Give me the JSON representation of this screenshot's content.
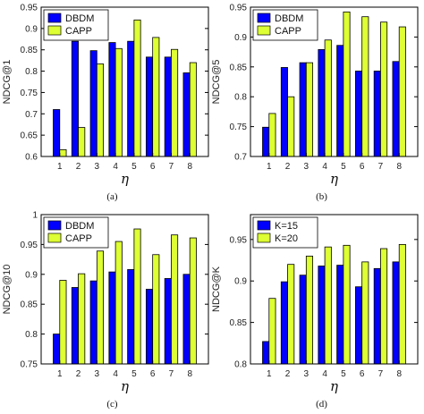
{
  "chart_data": [
    {
      "type": "bar",
      "caption": "(a)",
      "xlabel": "η",
      "ylabel": "NDCG@1",
      "categories": [
        "1",
        "2",
        "3",
        "4",
        "5",
        "6",
        "7",
        "8"
      ],
      "ylim": [
        0.6,
        0.95
      ],
      "yticks": [
        "0.6",
        "0.65",
        "0.7",
        "0.75",
        "0.8",
        "0.85",
        "0.9",
        "0.95"
      ],
      "legend_position": "top-left",
      "series": [
        {
          "name": "DBDM",
          "color": "#0000ff",
          "values": [
            0.71,
            0.87,
            0.848,
            0.867,
            0.87,
            0.833,
            0.833,
            0.796
          ]
        },
        {
          "name": "CAPP",
          "color": "#ddff33",
          "values": [
            0.616,
            0.668,
            0.817,
            0.853,
            0.92,
            0.879,
            0.851,
            0.82
          ]
        }
      ]
    },
    {
      "type": "bar",
      "caption": "(b)",
      "xlabel": "η",
      "ylabel": "NDCG@5",
      "categories": [
        "1",
        "2",
        "3",
        "4",
        "5",
        "6",
        "7",
        "8"
      ],
      "ylim": [
        0.7,
        0.95
      ],
      "yticks": [
        "0.7",
        "0.75",
        "0.8",
        "0.85",
        "0.9",
        "0.95"
      ],
      "legend_position": "top-left",
      "series": [
        {
          "name": "DBDM",
          "color": "#0000ff",
          "values": [
            0.749,
            0.849,
            0.857,
            0.879,
            0.886,
            0.843,
            0.843,
            0.859
          ]
        },
        {
          "name": "CAPP",
          "color": "#ddff33",
          "values": [
            0.772,
            0.8,
            0.857,
            0.895,
            0.942,
            0.934,
            0.925,
            0.917
          ]
        }
      ]
    },
    {
      "type": "bar",
      "caption": "(c)",
      "xlabel": "η",
      "ylabel": "NDCG@10",
      "categories": [
        "1",
        "2",
        "3",
        "4",
        "5",
        "6",
        "7",
        "8"
      ],
      "ylim": [
        0.75,
        1
      ],
      "yticks": [
        "0.75",
        "0.8",
        "0.85",
        "0.9",
        "0.95",
        "1"
      ],
      "legend_position": "top-left",
      "series": [
        {
          "name": "DBDM",
          "color": "#0000ff",
          "values": [
            0.8,
            0.878,
            0.889,
            0.904,
            0.908,
            0.875,
            0.893,
            0.9
          ]
        },
        {
          "name": "CAPP",
          "color": "#ddff33",
          "values": [
            0.89,
            0.901,
            0.939,
            0.955,
            0.976,
            0.933,
            0.966,
            0.961
          ]
        }
      ]
    },
    {
      "type": "bar",
      "caption": "(d)",
      "xlabel": "η",
      "ylabel": "NDCG@K",
      "categories": [
        "1",
        "2",
        "3",
        "4",
        "5",
        "6",
        "7",
        "8"
      ],
      "ylim": [
        0.8,
        0.98
      ],
      "yticks": [
        "0.8",
        "0.85",
        "0.9",
        "0.95"
      ],
      "legend_position": "top-left",
      "series": [
        {
          "name": "K=15",
          "color": "#0000ff",
          "values": [
            0.827,
            0.899,
            0.907,
            0.918,
            0.919,
            0.893,
            0.915,
            0.923
          ]
        },
        {
          "name": "K=20",
          "color": "#ddff33",
          "values": [
            0.879,
            0.92,
            0.93,
            0.941,
            0.943,
            0.923,
            0.939,
            0.944
          ]
        }
      ]
    }
  ]
}
